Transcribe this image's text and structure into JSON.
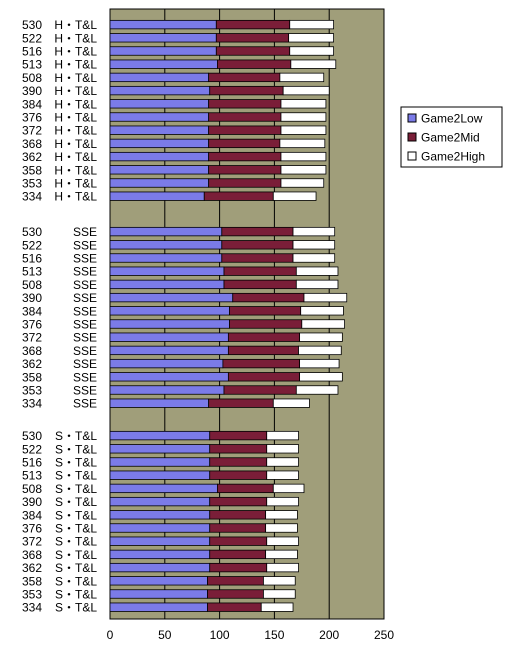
{
  "chart_data": {
    "type": "bar",
    "orientation": "horizontal",
    "stacked": true,
    "xlim": [
      0,
      250
    ],
    "x_ticks": [
      0,
      50,
      100,
      150,
      200,
      250
    ],
    "grid": "vertical",
    "legend_position": "right",
    "colors": {
      "plot_background": "#A09E7A",
      "Game2Low": "#7B7BE8",
      "Game2Mid": "#7A1E38",
      "Game2High": "#FFFFFF",
      "highlight_label": "#FF0000"
    },
    "groups": [
      {
        "name": "H・T&L",
        "categories": [
          {
            "num": "530",
            "highlight": true
          },
          {
            "num": "522"
          },
          {
            "num": "516"
          },
          {
            "num": "513"
          },
          {
            "num": "508"
          },
          {
            "num": "390"
          },
          {
            "num": "384"
          },
          {
            "num": "376"
          },
          {
            "num": "372"
          },
          {
            "num": "368"
          },
          {
            "num": "362"
          },
          {
            "num": "358"
          },
          {
            "num": "353"
          },
          {
            "num": "334"
          }
        ]
      },
      {
        "name": "SSE",
        "categories": [
          {
            "num": "530",
            "highlight": true
          },
          {
            "num": "522"
          },
          {
            "num": "516"
          },
          {
            "num": "513"
          },
          {
            "num": "508"
          },
          {
            "num": "390"
          },
          {
            "num": "384"
          },
          {
            "num": "376"
          },
          {
            "num": "372"
          },
          {
            "num": "368"
          },
          {
            "num": "362"
          },
          {
            "num": "358"
          },
          {
            "num": "353"
          },
          {
            "num": "334"
          }
        ]
      },
      {
        "name": "S・T&L",
        "categories": [
          {
            "num": "530",
            "highlight": true
          },
          {
            "num": "522"
          },
          {
            "num": "516"
          },
          {
            "num": "513"
          },
          {
            "num": "508"
          },
          {
            "num": "390"
          },
          {
            "num": "384"
          },
          {
            "num": "376"
          },
          {
            "num": "372"
          },
          {
            "num": "368"
          },
          {
            "num": "362"
          },
          {
            "num": "358"
          },
          {
            "num": "353"
          },
          {
            "num": "334"
          }
        ]
      }
    ],
    "series": [
      {
        "name": "Game2Low",
        "values": [
          [
            97,
            97,
            97,
            98,
            90,
            91,
            90,
            90,
            90,
            90,
            90,
            90,
            90,
            86
          ],
          [
            102,
            102,
            102,
            104,
            104,
            112,
            109,
            109,
            108,
            108,
            103,
            108,
            104,
            90
          ],
          [
            91,
            91,
            91,
            91,
            98,
            91,
            91,
            91,
            91,
            91,
            91,
            89,
            89,
            89
          ]
        ]
      },
      {
        "name": "Game2Mid",
        "values": [
          [
            67,
            66,
            67,
            67,
            65,
            67,
            66,
            66,
            66,
            65,
            66,
            66,
            66,
            63
          ],
          [
            65,
            65,
            65,
            66,
            66,
            65,
            65,
            66,
            65,
            64,
            70,
            65,
            66,
            59
          ],
          [
            52,
            52,
            52,
            52,
            51,
            52,
            51,
            51,
            52,
            51,
            52,
            51,
            51,
            49
          ]
        ]
      },
      {
        "name": "Game2High",
        "values": [
          [
            40,
            41,
            40,
            41,
            40,
            42,
            41,
            41,
            41,
            41,
            41,
            41,
            39,
            39
          ],
          [
            38,
            38,
            38,
            38,
            38,
            39,
            39,
            39,
            39,
            39,
            36,
            39,
            38,
            33
          ],
          [
            29,
            29,
            29,
            29,
            28,
            29,
            29,
            29,
            29,
            29,
            29,
            29,
            29,
            29
          ]
        ]
      }
    ],
    "legend": [
      "Game2Low",
      "Game2Mid",
      "Game2High"
    ]
  }
}
